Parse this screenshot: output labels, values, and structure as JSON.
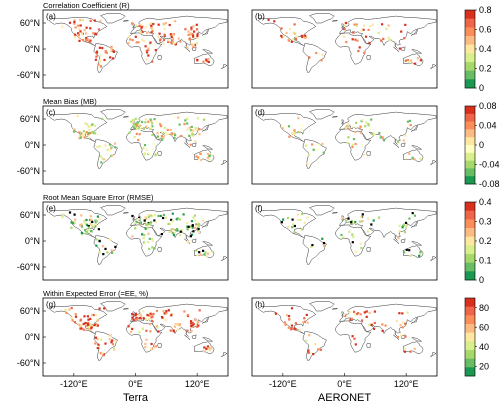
{
  "rows": [
    {
      "title": "Correlation Coefficient (R)",
      "left_label": "(a)",
      "right_label": "(b)",
      "colorbar": {
        "ticks": [
          "0.8",
          "0.6",
          "0.4",
          "0.2",
          "0"
        ],
        "colors": [
          "#d7301f",
          "#ef6548",
          "#fc8d59",
          "#fdbb84",
          "#fee8a0",
          "#d9ef8b",
          "#a6d96a",
          "#66bd63",
          "#1a9850"
        ]
      }
    },
    {
      "title": "Mean Bias (MB)",
      "left_label": "(c)",
      "right_label": "(d)",
      "colorbar": {
        "ticks": [
          "0.08",
          "0.04",
          "0",
          "-0.04",
          "-0.08"
        ],
        "colors": [
          "#d7301f",
          "#ef6548",
          "#fc8d59",
          "#fdbb84",
          "#fee8a0",
          "#ffffbf",
          "#d9ef8b",
          "#a6d96a",
          "#66bd63",
          "#1a9850"
        ]
      }
    },
    {
      "title": "Root Mean Square Error (RMSE)",
      "left_label": "(e)",
      "right_label": "(f)",
      "colorbar": {
        "ticks": [
          "0.4",
          "0.3",
          "0.2",
          "0.1",
          "0"
        ],
        "colors": [
          "#d7301f",
          "#ef6548",
          "#fc8d59",
          "#fdbb84",
          "#fee8a0",
          "#d9ef8b",
          "#a6d96a",
          "#66bd63",
          "#1a9850"
        ]
      }
    },
    {
      "title": "Within Expected Error (=EE, %)",
      "left_label": "(g)",
      "right_label": "(h)",
      "colorbar": {
        "ticks": [
          "80",
          "60",
          "40",
          "20"
        ],
        "colors": [
          "#d7301f",
          "#ef6548",
          "#fc8d59",
          "#fdbb84",
          "#fee8a0",
          "#d9ef8b",
          "#a6d96a",
          "#66bd63",
          "#1a9850"
        ]
      }
    }
  ],
  "lat_ticks": [
    "60°N",
    "0°N",
    "-60°N"
  ],
  "lon_ticks": [
    "-120°E",
    "0°E",
    "120°E"
  ],
  "column_labels": [
    "Terra",
    "AERONET"
  ]
}
